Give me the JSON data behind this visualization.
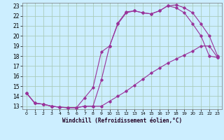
{
  "xlabel": "Windchill (Refroidissement éolien,°C)",
  "background_color": "#cceeff",
  "grid_color": "#aaccbb",
  "line_color": "#993399",
  "xlim": [
    0,
    23
  ],
  "ylim": [
    13,
    23
  ],
  "xticks": [
    0,
    1,
    2,
    3,
    4,
    5,
    6,
    7,
    8,
    9,
    10,
    11,
    12,
    13,
    14,
    15,
    16,
    17,
    18,
    19,
    20,
    21,
    22,
    23
  ],
  "yticks": [
    13,
    14,
    15,
    16,
    17,
    18,
    19,
    20,
    21,
    22,
    23
  ],
  "line1_x": [
    0,
    1,
    2,
    3,
    4,
    5,
    6,
    7,
    8,
    9,
    10,
    11,
    12,
    13,
    14,
    15,
    16,
    17,
    18,
    19,
    20,
    21,
    22,
    23
  ],
  "line1_y": [
    14.3,
    13.3,
    13.2,
    13.0,
    12.9,
    12.85,
    12.85,
    13.0,
    13.0,
    15.6,
    19.0,
    21.3,
    22.4,
    22.5,
    22.3,
    22.2,
    22.5,
    23.0,
    23.1,
    22.8,
    22.3,
    21.2,
    20.0,
    18.0
  ],
  "line2_x": [
    0,
    1,
    2,
    3,
    4,
    5,
    6,
    7,
    8,
    9,
    10,
    11,
    12,
    13,
    14,
    15,
    16,
    17,
    18,
    19,
    20,
    21,
    22,
    23
  ],
  "line2_y": [
    14.3,
    13.3,
    13.2,
    13.0,
    12.9,
    12.85,
    12.85,
    13.85,
    14.85,
    18.4,
    19.0,
    21.2,
    22.3,
    22.5,
    22.3,
    22.2,
    22.5,
    23.0,
    22.8,
    22.3,
    21.2,
    20.0,
    18.0,
    17.85
  ],
  "line3_x": [
    0,
    1,
    2,
    3,
    4,
    5,
    6,
    7,
    8,
    9,
    10,
    11,
    12,
    13,
    14,
    15,
    16,
    17,
    18,
    19,
    20,
    21,
    22,
    23
  ],
  "line3_y": [
    14.3,
    13.3,
    13.2,
    13.0,
    12.9,
    12.85,
    12.85,
    13.0,
    13.0,
    13.0,
    13.5,
    14.0,
    14.5,
    15.1,
    15.7,
    16.3,
    16.8,
    17.3,
    17.7,
    18.1,
    18.5,
    19.0,
    19.0,
    17.85
  ]
}
